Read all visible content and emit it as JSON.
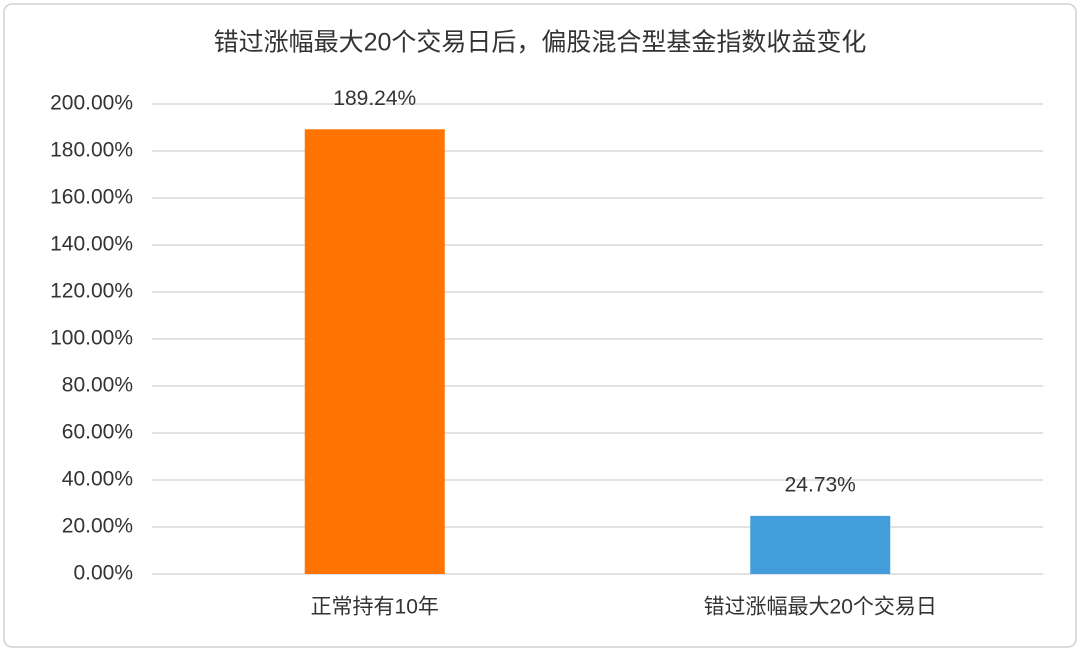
{
  "chart_data": {
    "type": "bar",
    "title": "错过涨幅最大20个交易日后，偏股混合型基金指数收益变化",
    "categories": [
      "正常持有10年",
      "错过涨幅最大20个交易日"
    ],
    "values": [
      189.24,
      24.73
    ],
    "value_labels": [
      "189.24%",
      "24.73%"
    ],
    "colors": [
      "#ff7300",
      "#449ddb"
    ],
    "ylim": [
      0,
      200
    ],
    "yticks": [
      {
        "value": 0,
        "label": "0.00%"
      },
      {
        "value": 20,
        "label": "20.00%"
      },
      {
        "value": 40,
        "label": "40.00%"
      },
      {
        "value": 60,
        "label": "60.00%"
      },
      {
        "value": 80,
        "label": "80.00%"
      },
      {
        "value": 100,
        "label": "100.00%"
      },
      {
        "value": 120,
        "label": "120.00%"
      },
      {
        "value": 140,
        "label": "140.00%"
      },
      {
        "value": 160,
        "label": "160.00%"
      },
      {
        "value": 180,
        "label": "180.00%"
      },
      {
        "value": 200,
        "label": "200.00%"
      }
    ],
    "grid": true
  }
}
